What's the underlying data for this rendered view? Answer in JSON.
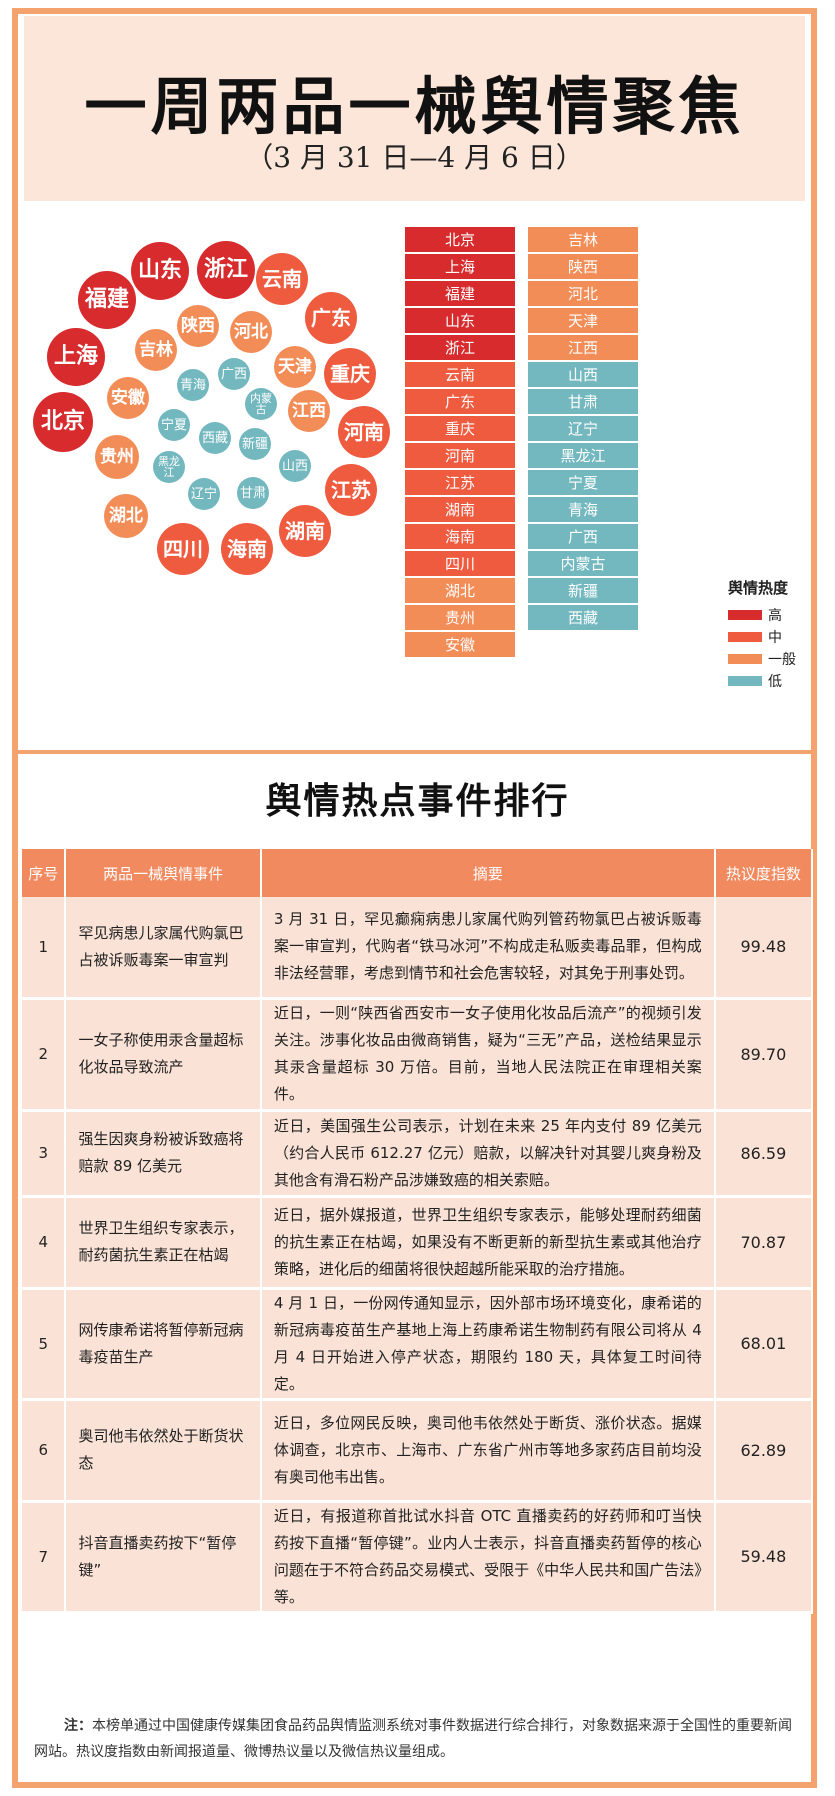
{
  "header": {
    "title": "一周两品一械舆情聚焦",
    "date_range": "（3 月 31 日—4 月 6 日）"
  },
  "colors": {
    "high": "#d72b2e",
    "mid": "#ef5b3f",
    "general": "#f38d57",
    "low": "#73b8bf",
    "frame": "#f4a36f"
  },
  "bubbles": [
    {
      "name": "北京",
      "level": "high"
    },
    {
      "name": "上海",
      "level": "high"
    },
    {
      "name": "福建",
      "level": "high"
    },
    {
      "name": "山东",
      "level": "high"
    },
    {
      "name": "浙江",
      "level": "high"
    },
    {
      "name": "云南",
      "level": "mid"
    },
    {
      "name": "广东",
      "level": "mid"
    },
    {
      "name": "重庆",
      "level": "mid"
    },
    {
      "name": "河南",
      "level": "mid"
    },
    {
      "name": "江苏",
      "level": "mid"
    },
    {
      "name": "湖南",
      "level": "mid"
    },
    {
      "name": "海南",
      "level": "mid"
    },
    {
      "name": "四川",
      "level": "mid"
    },
    {
      "name": "湖北",
      "level": "general"
    },
    {
      "name": "贵州",
      "level": "general"
    },
    {
      "name": "安徽",
      "level": "general"
    },
    {
      "name": "吉林",
      "level": "general"
    },
    {
      "name": "陕西",
      "level": "general"
    },
    {
      "name": "河北",
      "level": "general"
    },
    {
      "name": "天津",
      "level": "general"
    },
    {
      "name": "江西",
      "level": "general"
    },
    {
      "name": "青海",
      "level": "low"
    },
    {
      "name": "广西",
      "level": "low"
    },
    {
      "name": "内蒙古",
      "level": "low"
    },
    {
      "name": "宁夏",
      "level": "low"
    },
    {
      "name": "西藏",
      "level": "low"
    },
    {
      "name": "新疆",
      "level": "low"
    },
    {
      "name": "黑龙江",
      "level": "low"
    },
    {
      "name": "山西",
      "level": "low"
    },
    {
      "name": "辽宁",
      "level": "low"
    },
    {
      "name": "甘肃",
      "level": "low"
    }
  ],
  "list_left": [
    {
      "name": "北京",
      "level": "high"
    },
    {
      "name": "上海",
      "level": "high"
    },
    {
      "name": "福建",
      "level": "high"
    },
    {
      "name": "山东",
      "level": "high"
    },
    {
      "name": "浙江",
      "level": "high"
    },
    {
      "name": "云南",
      "level": "mid"
    },
    {
      "name": "广东",
      "level": "mid"
    },
    {
      "name": "重庆",
      "level": "mid"
    },
    {
      "name": "河南",
      "level": "mid"
    },
    {
      "name": "江苏",
      "level": "mid"
    },
    {
      "name": "湖南",
      "level": "mid"
    },
    {
      "name": "海南",
      "level": "mid"
    },
    {
      "name": "四川",
      "level": "mid"
    },
    {
      "name": "湖北",
      "level": "general"
    },
    {
      "name": "贵州",
      "level": "general"
    },
    {
      "name": "安徽",
      "level": "general"
    }
  ],
  "list_right": [
    {
      "name": "吉林",
      "level": "general"
    },
    {
      "name": "陕西",
      "level": "general"
    },
    {
      "name": "河北",
      "level": "general"
    },
    {
      "name": "天津",
      "level": "general"
    },
    {
      "name": "江西",
      "level": "general"
    },
    {
      "name": "山西",
      "level": "low"
    },
    {
      "name": "甘肃",
      "level": "low"
    },
    {
      "name": "辽宁",
      "level": "low"
    },
    {
      "name": "黑龙江",
      "level": "low"
    },
    {
      "name": "宁夏",
      "level": "low"
    },
    {
      "name": "青海",
      "level": "low"
    },
    {
      "name": "广西",
      "level": "low"
    },
    {
      "name": "内蒙古",
      "level": "low"
    },
    {
      "name": "新疆",
      "level": "low"
    },
    {
      "name": "西藏",
      "level": "low"
    }
  ],
  "legend": {
    "title": "舆情热度",
    "items": [
      {
        "label": "高",
        "level": "high"
      },
      {
        "label": "中",
        "level": "mid"
      },
      {
        "label": "一般",
        "level": "general"
      },
      {
        "label": "低",
        "level": "low"
      }
    ]
  },
  "ranking": {
    "title": "舆情热点事件排行",
    "columns": [
      "序号",
      "两品一械舆情事件",
      "摘要",
      "热议度指数"
    ],
    "rows": [
      {
        "rank": "1",
        "event": "罕见病患儿家属代购氯巴占被诉贩毒案一审宣判",
        "summary": "3 月 31 日，罕见癫痫病患儿家属代购列管药物氯巴占被诉贩毒案一审宣判，代购者“铁马冰河”不构成走私贩卖毒品罪，但构成非法经营罪，考虑到情节和社会危害较轻，对其免于刑事处罚。",
        "index": "99.48"
      },
      {
        "rank": "2",
        "event": "一女子称使用汞含量超标化妆品导致流产",
        "summary": "近日，一则“陕西省西安市一女子使用化妆品后流产”的视频引发关注。涉事化妆品由微商销售，疑为“三无”产品，送检结果显示其汞含量超标 30 万倍。目前，当地人民法院正在审理相关案件。",
        "index": "89.70"
      },
      {
        "rank": "3",
        "event": "强生因爽身粉被诉致癌将赔款 89 亿美元",
        "summary": "近日，美国强生公司表示，计划在未来 25 年内支付 89 亿美元（约合人民币 612.27 亿元）赔款，以解决针对其婴儿爽身粉及其他含有滑石粉产品涉嫌致癌的相关索赔。",
        "index": "86.59"
      },
      {
        "rank": "4",
        "event": "世界卫生组织专家表示，耐药菌抗生素正在枯竭",
        "summary": "近日，据外媒报道，世界卫生组织专家表示，能够处理耐药细菌的抗生素正在枯竭，如果没有不断更新的新型抗生素或其他治疗策略，进化后的细菌将很快超越所能采取的治疗措施。",
        "index": "70.87"
      },
      {
        "rank": "5",
        "event": "网传康希诺将暂停新冠病毒疫苗生产",
        "summary": "4 月 1 日，一份网传通知显示，因外部市场环境变化，康希诺的新冠病毒疫苗生产基地上海上药康希诺生物制药有限公司将从 4 月 4 日开始进入停产状态，期限约 180 天，具体复工时间待定。",
        "index": "68.01"
      },
      {
        "rank": "6",
        "event": "奥司他韦依然处于断货状态",
        "summary": "近日，多位网民反映，奥司他韦依然处于断货、涨价状态。据媒体调查，北京市、上海市、广东省广州市等地多家药店目前均没有奥司他韦出售。",
        "index": "62.89"
      },
      {
        "rank": "7",
        "event": "抖音直播卖药按下“暂停键”",
        "summary": "近日，有报道称首批试水抖音 OTC 直播卖药的好药师和叮当快药按下直播“暂停键”。业内人士表示，抖音直播卖药暂停的核心问题在于不符合药品交易模式、受限于《中华人民共和国广告法》等。",
        "index": "59.48"
      }
    ]
  },
  "note": {
    "label": "注：",
    "text": "本榜单通过中国健康传媒集团食品药品舆情监测系统对事件数据进行综合排行，对象数据来源于全国性的重要新闻网站。热议度指数由新闻报道量、微博热议量以及微信热议量组成。"
  }
}
